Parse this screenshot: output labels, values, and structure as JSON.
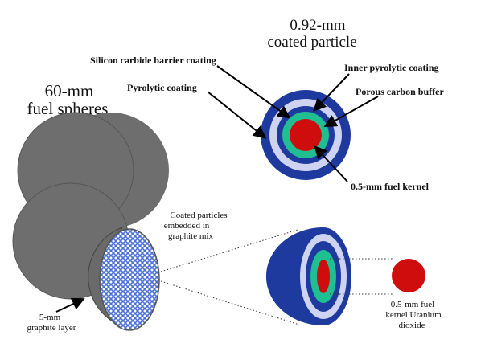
{
  "colors": {
    "sphere_gray": "#6e6e6e",
    "outer_blue": "#1f3a9e",
    "lavender": "#cfd3f2",
    "inner_green": "#1fbf92",
    "kernel_red": "#d00d0d",
    "mesh_blue": "#4a6fd6"
  },
  "titles": {
    "particle_title_line1": "0.92-mm",
    "particle_title_line2": "coated particle",
    "fuel_title_line1": "60-mm",
    "fuel_title_line2": "fuel spheres"
  },
  "labels": {
    "sic": "Silicon carbide barrier coating",
    "inner_pyro": "Inner pyrolytic coating",
    "pyro": "Pyrolytic coating",
    "buffer": "Porous carbon buffer",
    "kernel_label": "0.5-mm fuel kernel",
    "coated_line1": "Coated particles",
    "coated_line2": "embedded in",
    "coated_line3": "graphite mix",
    "graphite_line1": "5-mm",
    "graphite_line2": "graphite layer",
    "kernel_bottom_line1": "0.5-mm fuel",
    "kernel_bottom_line2": "kernel Uranium",
    "kernel_bottom_line3": "dioxide"
  }
}
